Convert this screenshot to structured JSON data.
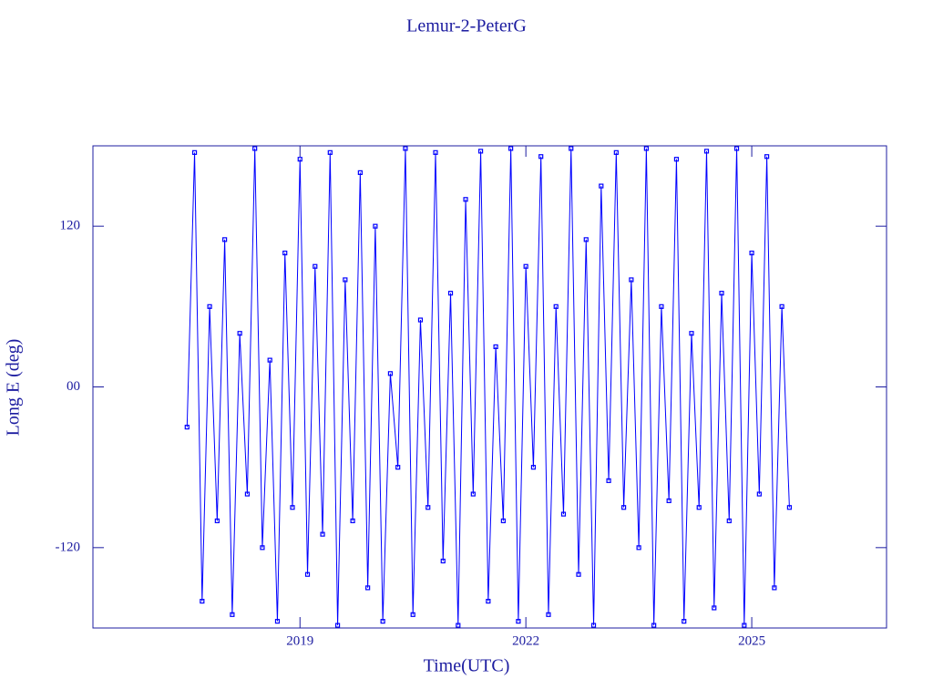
{
  "chart_data": {
    "type": "line",
    "title": "Lemur-2-PeterG",
    "xlabel": "Time(UTC)",
    "ylabel": "Long E (deg)",
    "color": "#0000ff",
    "xlim": [
      2016.25,
      2026.79
    ],
    "xticks": [
      2019,
      2022,
      2025
    ],
    "ylim": [
      -180,
      180
    ],
    "yticks": [
      -120,
      {
        "value": 0,
        "label": "00"
      },
      120
    ],
    "x": [
      2017.5,
      2017.6,
      2017.7,
      2017.8,
      2017.9,
      2018.0,
      2018.1,
      2018.2,
      2018.3,
      2018.4,
      2018.5,
      2018.6,
      2018.7,
      2018.8,
      2018.9,
      2019.0,
      2019.1,
      2019.2,
      2019.3,
      2019.4,
      2019.5,
      2019.6,
      2019.7,
      2019.8,
      2019.9,
      2020.0,
      2020.1,
      2020.2,
      2020.3,
      2020.4,
      2020.5,
      2020.6,
      2020.7,
      2020.8,
      2020.9,
      2021.0,
      2021.1,
      2021.2,
      2021.3,
      2021.4,
      2021.5,
      2021.6,
      2021.7,
      2021.8,
      2021.9,
      2022.0,
      2022.1,
      2022.2,
      2022.3,
      2022.4,
      2022.5,
      2022.6,
      2022.7,
      2022.8,
      2022.9,
      2023.0,
      2023.1,
      2023.2,
      2023.3,
      2023.4,
      2023.5,
      2023.6,
      2023.7,
      2023.8,
      2023.9,
      2024.0,
      2024.1,
      2024.2,
      2024.3,
      2024.4,
      2024.5,
      2024.6,
      2024.7,
      2024.8,
      2024.9,
      2025.0,
      2025.1,
      2025.2,
      2025.3,
      2025.4,
      2025.5
    ],
    "values": [
      -30,
      175,
      -160,
      60,
      -100,
      110,
      -170,
      40,
      -80,
      178,
      -120,
      20,
      -175,
      100,
      -90,
      170,
      -140,
      90,
      -110,
      175,
      -178,
      80,
      -100,
      160,
      -150,
      120,
      -175,
      10,
      -60,
      178,
      -170,
      50,
      -90,
      175,
      -130,
      70,
      -178,
      140,
      -80,
      176,
      -160,
      30,
      -100,
      178,
      -175,
      90,
      -60,
      172,
      -170,
      60,
      -95,
      178,
      -140,
      110,
      -178,
      150,
      -70,
      175,
      -90,
      80,
      -120,
      178,
      -178,
      60,
      -85,
      170,
      -175,
      40,
      -90,
      176,
      -165,
      70,
      -100,
      178,
      -178,
      100,
      -80,
      172,
      -150,
      60,
      -90
    ]
  }
}
